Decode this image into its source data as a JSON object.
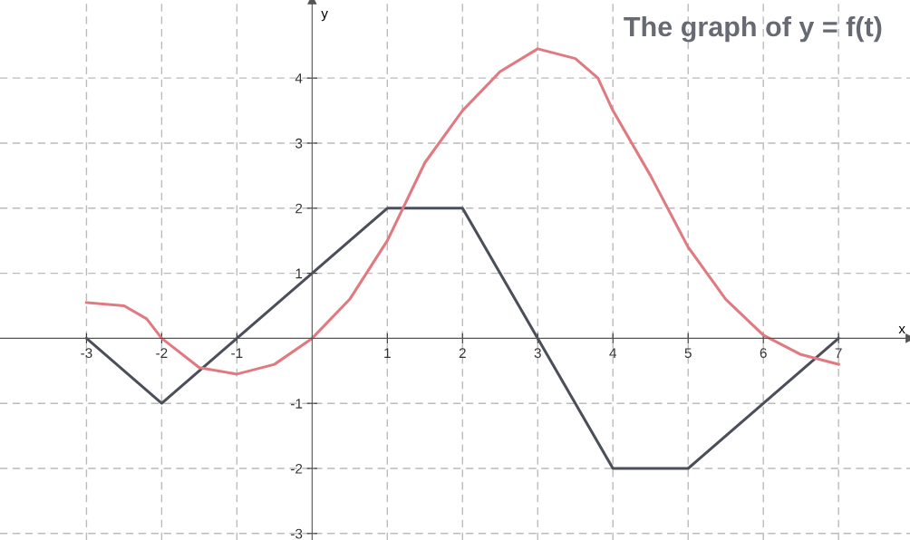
{
  "chart_data": {
    "type": "line",
    "title": "The graph of y = f(t)",
    "xlabel": "x",
    "ylabel": "y",
    "xlim": [
      -4.15,
      7.95
    ],
    "ylim": [
      -3.1,
      5.2
    ],
    "xticks": [
      -3,
      -2,
      -1,
      1,
      2,
      3,
      4,
      5,
      6,
      7
    ],
    "yticks": [
      -3,
      -2,
      -1,
      1,
      2,
      3,
      4
    ],
    "grid": true,
    "legend": false,
    "line_style": "solid",
    "marker": "none",
    "series": [
      {
        "color": "#4a4f5a",
        "x": [
          -3,
          -2,
          -1,
          0,
          1,
          2,
          3,
          4,
          5,
          7
        ],
        "values": [
          0,
          -1,
          0,
          1,
          2,
          2,
          0,
          -2,
          -2,
          0
        ]
      },
      {
        "color": "#e07a80",
        "x": [
          -3,
          -2.5,
          -2.2,
          -2,
          -1.5,
          -1,
          -0.5,
          0,
          0.5,
          1,
          1.5,
          2,
          2.5,
          3,
          3.5,
          3.8,
          4,
          4.5,
          5,
          5.5,
          6,
          6.5,
          7
        ],
        "values": [
          0.55,
          0.5,
          0.3,
          0,
          -0.45,
          -0.55,
          -0.4,
          0,
          0.6,
          1.5,
          2.7,
          3.5,
          4.1,
          4.45,
          4.3,
          4.0,
          3.5,
          2.5,
          1.4,
          0.6,
          0.05,
          -0.25,
          -0.4
        ]
      }
    ]
  }
}
